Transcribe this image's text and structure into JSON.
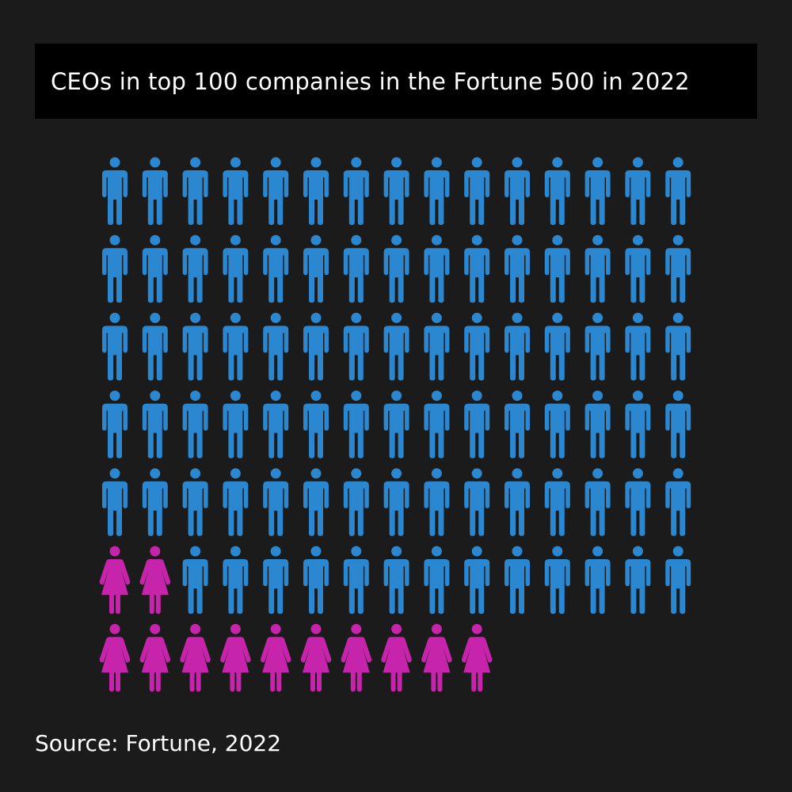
{
  "title": "CEOs in top 100 companies in the Fortune 500 in 2022",
  "source": "Source: Fortune, 2022",
  "colors": {
    "background": "#1b1b1b",
    "title_background": "#000000",
    "men": "#2b88d0",
    "women": "#c624aa",
    "text": "#ffffff"
  },
  "chart_data": {
    "type": "pictogram",
    "title": "CEOs in top 100 companies in the Fortune 500 in 2022",
    "total": 100,
    "icons_per_row": 15,
    "groups": [
      {
        "icon": "man-icon",
        "value": 88,
        "color": "#2b88d0"
      },
      {
        "icon": "woman-icon",
        "value": 12,
        "color": "#c624aa"
      }
    ],
    "order": "women fill from the bottom-left; men fill the remaining cells above"
  }
}
